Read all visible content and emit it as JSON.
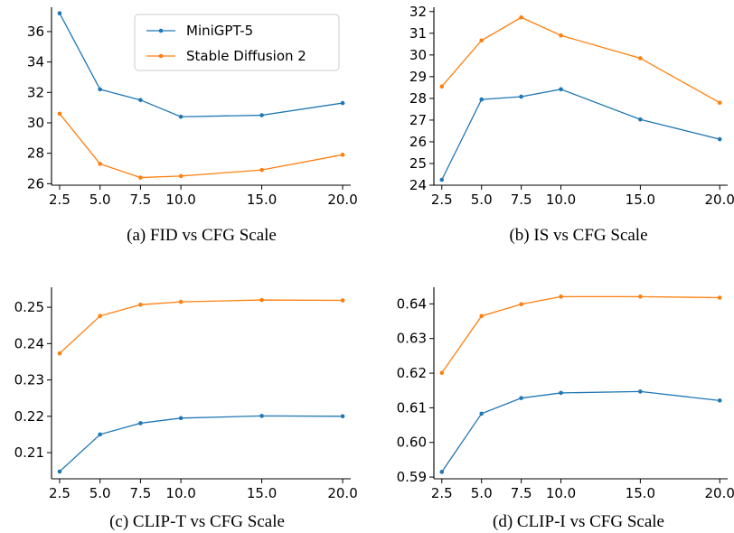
{
  "colors": {
    "minigpt5": "#1f77b4",
    "sd2": "#ff7f0e",
    "axis": "#000000"
  },
  "chart_data": [
    {
      "type": "line",
      "caption": "(a) FID vs CFG Scale",
      "x": [
        2.5,
        5.0,
        7.5,
        10.0,
        15.0,
        20.0
      ],
      "xticks": [
        "2.5",
        "5.0",
        "7.5",
        "10.0",
        "15.0",
        "20.0"
      ],
      "xlim": [
        2.0,
        20.5
      ],
      "ylim": [
        25.9,
        37.6
      ],
      "yticks": [
        26,
        28,
        30,
        32,
        34,
        36
      ],
      "ytick_labels": [
        "26",
        "28",
        "30",
        "32",
        "34",
        "36"
      ],
      "series": [
        {
          "name": "MiniGPT-5",
          "color": "#1f77b4",
          "values": [
            37.2,
            32.2,
            31.5,
            30.4,
            30.5,
            31.3
          ]
        },
        {
          "name": "Stable Diffusion 2",
          "color": "#ff7f0e",
          "values": [
            30.6,
            27.3,
            26.4,
            26.5,
            26.9,
            27.9
          ]
        }
      ],
      "legend": "top-right"
    },
    {
      "type": "line",
      "caption": "(b) IS vs CFG Scale",
      "x": [
        2.5,
        5.0,
        7.5,
        10.0,
        15.0,
        20.0
      ],
      "xticks": [
        "2.5",
        "5.0",
        "7.5",
        "10.0",
        "15.0",
        "20.0"
      ],
      "xlim": [
        2.0,
        20.5
      ],
      "ylim": [
        24.0,
        32.2
      ],
      "yticks": [
        24,
        25,
        26,
        27,
        28,
        29,
        30,
        31,
        32
      ],
      "ytick_labels": [
        "24",
        "25",
        "26",
        "27",
        "28",
        "29",
        "30",
        "31",
        "32"
      ],
      "series": [
        {
          "name": "MiniGPT-5",
          "color": "#1f77b4",
          "values": [
            24.25,
            27.95,
            28.08,
            28.42,
            27.03,
            26.12
          ]
        },
        {
          "name": "Stable Diffusion 2",
          "color": "#ff7f0e",
          "values": [
            28.55,
            30.67,
            31.73,
            30.9,
            29.85,
            27.8
          ]
        }
      ]
    },
    {
      "type": "line",
      "caption": "(c) CLIP-T vs CFG Scale",
      "x": [
        2.5,
        5.0,
        7.5,
        10.0,
        15.0,
        20.0
      ],
      "xticks": [
        "2.5",
        "5.0",
        "7.5",
        "10.0",
        "15.0",
        "20.0"
      ],
      "xlim": [
        2.0,
        20.5
      ],
      "ylim": [
        0.2028,
        0.2555
      ],
      "yticks": [
        0.21,
        0.22,
        0.23,
        0.24,
        0.25
      ],
      "ytick_labels": [
        "0.21",
        "0.22",
        "0.23",
        "0.24",
        "0.25"
      ],
      "series": [
        {
          "name": "MiniGPT-5",
          "color": "#1f77b4",
          "values": [
            0.2048,
            0.215,
            0.2181,
            0.2195,
            0.2201,
            0.22
          ]
        },
        {
          "name": "Stable Diffusion 2",
          "color": "#ff7f0e",
          "values": [
            0.2373,
            0.2476,
            0.2507,
            0.2515,
            0.252,
            0.2519
          ]
        }
      ]
    },
    {
      "type": "line",
      "caption": "(d) CLIP-I vs CFG Scale",
      "x": [
        2.5,
        5.0,
        7.5,
        10.0,
        15.0,
        20.0
      ],
      "xticks": [
        "2.5",
        "5.0",
        "7.5",
        "10.0",
        "15.0",
        "20.0"
      ],
      "xlim": [
        2.0,
        20.5
      ],
      "ylim": [
        0.5895,
        0.6448
      ],
      "yticks": [
        0.59,
        0.6,
        0.61,
        0.62,
        0.63,
        0.64
      ],
      "ytick_labels": [
        "0.59",
        "0.60",
        "0.61",
        "0.62",
        "0.63",
        "0.64"
      ],
      "series": [
        {
          "name": "MiniGPT-5",
          "color": "#1f77b4",
          "values": [
            0.5915,
            0.6083,
            0.6128,
            0.6143,
            0.6147,
            0.6121
          ]
        },
        {
          "name": "Stable Diffusion 2",
          "color": "#ff7f0e",
          "values": [
            0.6201,
            0.6365,
            0.6399,
            0.6421,
            0.6421,
            0.6418
          ]
        }
      ]
    }
  ]
}
